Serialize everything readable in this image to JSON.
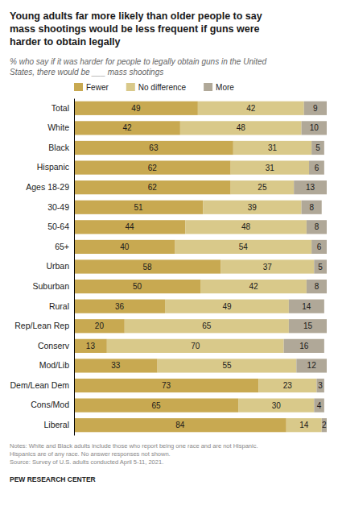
{
  "chart_data": {
    "type": "bar",
    "orientation": "horizontal",
    "stacked": true,
    "data_labels": true,
    "tick_labels": "y",
    "legend": "top",
    "grid": false,
    "title": "Young adults far more likely than older people to say\nmass shootings would be less frequent if guns were\nharder to obtain legally",
    "subtitle": "% who say if it was harder for people to legally obtain guns in the United\nStates, there would be ___ mass shootings",
    "annotations": [
      "Notes: White and Black adults include those who report being one race and are not Hispanic.\nHispanics are of any race. No answer responses not shown.\nSource: Survey of U.S. adults conducted April 5-11, 2021.",
      "PEW RESEARCH CENTER"
    ],
    "categories": [
      "Total",
      "White",
      "Black",
      "Hispanic",
      "Ages 18-29",
      "30-49",
      "50-64",
      "65+",
      "Urban",
      "Suburban",
      "Rural",
      "Rep/Lean Rep",
      "Conserv",
      "Mod/Lib",
      "Dem/Lean Dem",
      "Cons/Mod",
      "Liberal"
    ],
    "xlim": [
      0,
      100
    ],
    "series": [
      {
        "name": "Fewer",
        "color": "#C8A951",
        "values": [
          49,
          42,
          63,
          62,
          62,
          51,
          44,
          40,
          58,
          50,
          36,
          20,
          13,
          33,
          73,
          65,
          84
        ]
      },
      {
        "name": "No difference",
        "color": "#D9C98A",
        "values": [
          42,
          48,
          31,
          31,
          25,
          39,
          48,
          54,
          37,
          42,
          49,
          65,
          70,
          55,
          23,
          30,
          14
        ]
      },
      {
        "name": "More",
        "color": "#B0A898",
        "values": [
          9,
          10,
          5,
          6,
          13,
          8,
          8,
          6,
          5,
          8,
          14,
          15,
          16,
          12,
          3,
          4,
          2
        ]
      }
    ]
  }
}
